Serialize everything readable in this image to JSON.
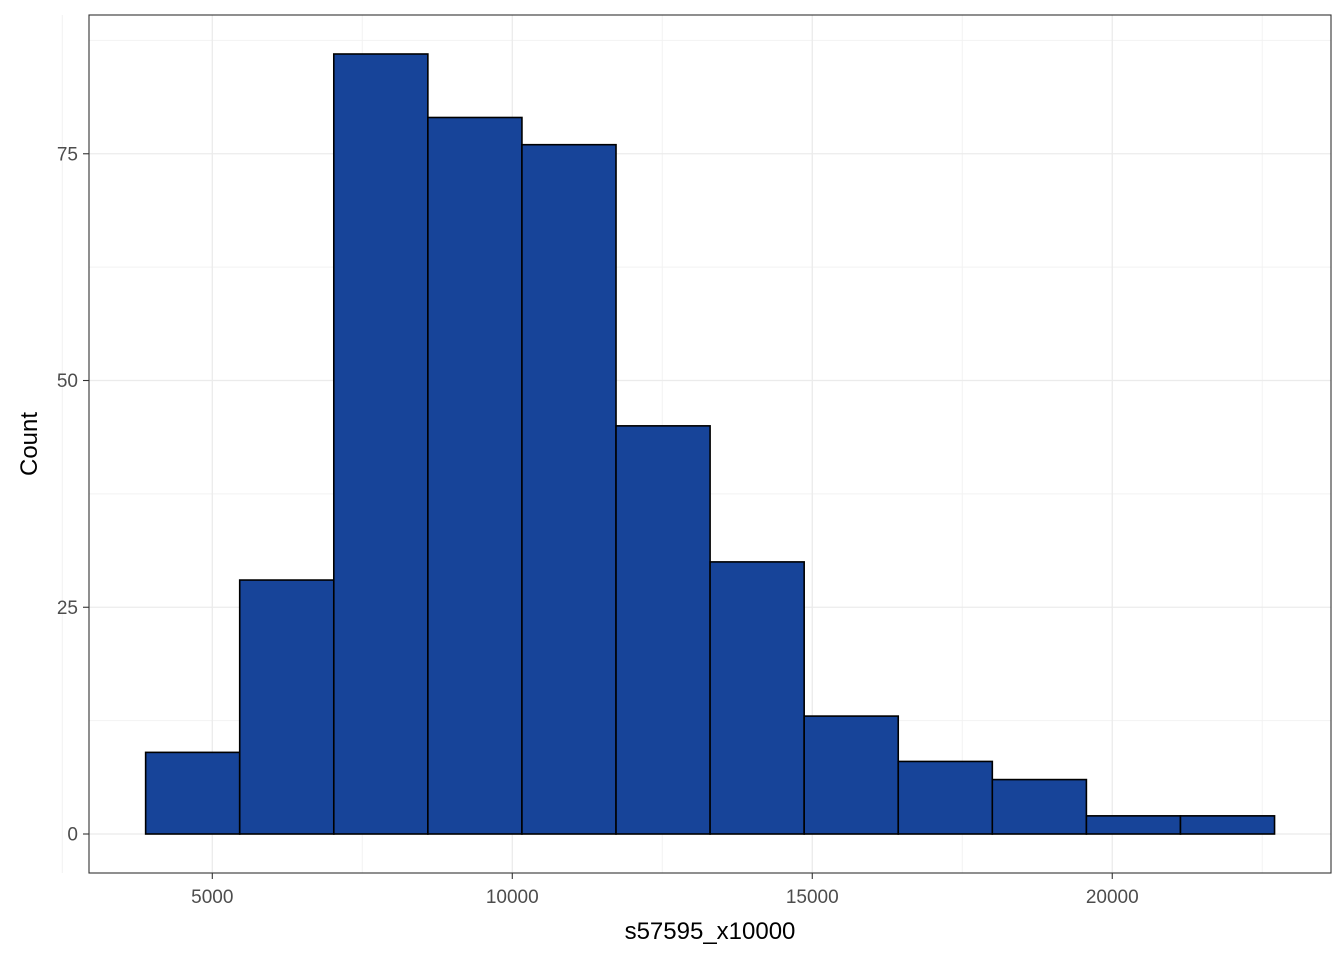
{
  "chart_data": {
    "type": "bar",
    "subtype": "histogram",
    "xlabel": "s57595_x10000",
    "ylabel": "Count",
    "bins": [
      {
        "x0": 3889,
        "x1": 5457,
        "count": 9
      },
      {
        "x0": 5457,
        "x1": 7025,
        "count": 28
      },
      {
        "x0": 7025,
        "x1": 8593,
        "count": 86
      },
      {
        "x0": 8593,
        "x1": 10161,
        "count": 79
      },
      {
        "x0": 10161,
        "x1": 11729,
        "count": 76
      },
      {
        "x0": 11729,
        "x1": 13297,
        "count": 45
      },
      {
        "x0": 13297,
        "x1": 14865,
        "count": 30
      },
      {
        "x0": 14865,
        "x1": 16433,
        "count": 13
      },
      {
        "x0": 16433,
        "x1": 18001,
        "count": 8
      },
      {
        "x0": 18001,
        "x1": 19569,
        "count": 6
      },
      {
        "x0": 19569,
        "x1": 21137,
        "count": 2
      },
      {
        "x0": 21137,
        "x1": 22705,
        "count": 2
      }
    ],
    "xlim": [
      2945,
      23646
    ],
    "ylim": [
      -4.3,
      90.3
    ],
    "x_ticks": [
      5000,
      10000,
      15000,
      20000
    ],
    "x_tick_labels": [
      "5000",
      "10000",
      "15000",
      "20000"
    ],
    "x_minor_ticks": [
      2500,
      7500,
      12500,
      17500,
      22500
    ],
    "y_ticks": [
      0,
      25,
      50,
      75
    ],
    "y_tick_labels": [
      "0",
      "25",
      "50",
      "75"
    ],
    "y_minor_ticks": [
      12.5,
      37.5,
      62.5,
      87.5
    ],
    "grid": true,
    "legend": "none",
    "colors": {
      "bar_fill": "#174499",
      "bar_stroke": "#000000",
      "grid_major": "#ebebeb",
      "grid_minor": "#f2f2f2",
      "panel_border": "#333333",
      "tick_label": "#4d4d4d",
      "axis_title": "#000000",
      "background": "#ffffff"
    }
  }
}
